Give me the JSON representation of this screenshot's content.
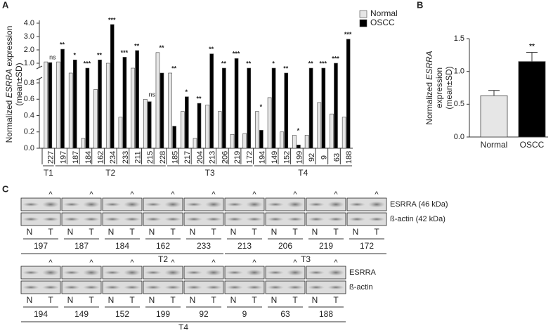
{
  "chart_data": [
    {
      "type": "bar",
      "panel": "A",
      "ylabel": [
        "Normalized ",
        "ESRRA",
        " expression",
        "(mean±SD)"
      ],
      "categories": [
        "227",
        "197",
        "187",
        "184",
        "162",
        "234",
        "233",
        "211",
        "215",
        "228",
        "185",
        "217",
        "204",
        "213",
        "206",
        "219",
        "172",
        "194",
        "149",
        "152",
        "199",
        "92",
        "9",
        "63",
        "188"
      ],
      "groups": [
        {
          "name": "T1",
          "from": 0,
          "to": 0
        },
        {
          "name": "T2",
          "from": 1,
          "to": 9
        },
        {
          "name": "T3",
          "from": 10,
          "to": 16
        },
        {
          "name": "T4",
          "from": 17,
          "to": 24
        }
      ],
      "series": [
        {
          "name": "Normal",
          "color": "#e6e6e6",
          "values": [
            1.1,
            1.1,
            0.9,
            0.12,
            0.72,
            1.0,
            0.38,
            0.95,
            0.6,
            1.8,
            0.9,
            0.45,
            0.12,
            0.53,
            0.45,
            0.17,
            0.18,
            0.45,
            0.62,
            0.2,
            0.16,
            0.16,
            0.56,
            0.42,
            0.38
          ]
        },
        {
          "name": "OSCC",
          "color": "#000000",
          "values": [
            1.05,
            2.05,
            1.25,
            0.95,
            1.25,
            3.9,
            1.45,
            1.95,
            0.57,
            0.9,
            0.27,
            0.63,
            0.55,
            1.7,
            0.95,
            1.35,
            0.95,
            0.22,
            0.95,
            0.9,
            0.04,
            0.95,
            0.95,
            1.0,
            2.8
          ]
        }
      ],
      "significance": [
        "ns",
        "**",
        "*",
        "***",
        "**",
        "***",
        "***",
        "**",
        "ns",
        "**",
        "**",
        "*",
        "**",
        "**",
        "**",
        "***",
        "**",
        "*",
        "*",
        "**",
        "*",
        "**",
        "***",
        "***",
        "***"
      ],
      "ylim": [
        0,
        4
      ],
      "ybreak": [
        0.8,
        1.0
      ],
      "yticks": [
        {
          "value": 0,
          "label": "0.0"
        },
        {
          "value": 0.2,
          "label": "0.2"
        },
        {
          "value": 0.4,
          "label": "0.4"
        },
        {
          "value": 0.6,
          "label": "0.6"
        },
        {
          "value": 0.8,
          "label": "0.8"
        },
        {
          "value": 1,
          "label": "1.0"
        },
        {
          "value": 2,
          "label": "2.0"
        },
        {
          "value": 3,
          "label": "3.0"
        },
        {
          "value": 4,
          "label": "4.0"
        }
      ],
      "legend": "top-right"
    },
    {
      "type": "bar",
      "panel": "B",
      "ylabel": [
        "Normalized ",
        "ESRRA",
        "expression",
        "(mean±SD)"
      ],
      "categories": [
        "Normal",
        "OSCC"
      ],
      "values": [
        0.63,
        1.15
      ],
      "errors": [
        0.08,
        0.14
      ],
      "colors": [
        "#e6e6e6",
        "#000000"
      ],
      "significance": [
        null,
        "**"
      ],
      "ylim": [
        0,
        1.5
      ],
      "yticks": [
        {
          "value": 0,
          "label": "0.0"
        },
        {
          "value": 0.5,
          "label": "0.5"
        },
        {
          "value": 1,
          "label": "1.0"
        },
        {
          "value": 1.5,
          "label": "1.5"
        }
      ]
    }
  ],
  "blots": {
    "panel": "C",
    "marker": "^",
    "lanes": [
      "N",
      "T"
    ],
    "rows": [
      {
        "samples": [
          "197",
          "187",
          "184",
          "162",
          "233",
          "213",
          "206",
          "219",
          "172"
        ],
        "labels": [
          "ESRRA (46 kDa)",
          "ß-actin (42 kDa)"
        ],
        "groups": [
          "T2",
          "T3"
        ]
      },
      {
        "samples": [
          "194",
          "149",
          "152",
          "199",
          "92",
          "9",
          "63",
          "188"
        ],
        "labels": [
          "ESRRA",
          "ß-actin"
        ],
        "groups": [
          "T4"
        ]
      }
    ]
  }
}
